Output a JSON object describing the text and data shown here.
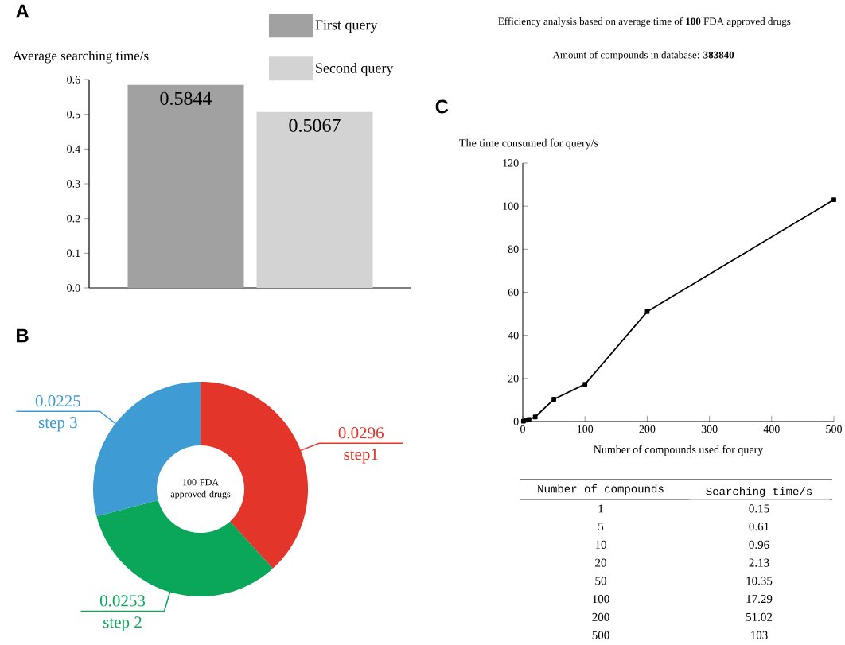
{
  "chart_data": [
    {
      "type": "bar",
      "title": "A",
      "ylabel": "Average searching time/s",
      "categories": [
        null
      ],
      "series": [
        {
          "name": "First query",
          "color": "#a0a1a0",
          "values": [
            0.5844
          ]
        },
        {
          "name": "Second query",
          "color": "#d3d3d3",
          "values": [
            0.5067
          ]
        }
      ],
      "ylim": [
        0,
        0.6
      ],
      "yticks": [
        {
          "value": 0,
          "label": "0.0"
        },
        0.1,
        0.2,
        0.3,
        0.4,
        0.5,
        0.6
      ],
      "data_labels": true,
      "legend": "top",
      "annotations": [
        "Efficiency analysis based on average time of **100** FDA approved drugs",
        "Amount of compounds in database: **383840**"
      ]
    },
    {
      "type": "donut",
      "title": "B",
      "categories": [
        "step1",
        "step 2",
        "step 3"
      ],
      "values": [
        0.0296,
        0.0253,
        0.0225
      ],
      "colors": [
        "#e3352a",
        "#0aa65a",
        "#3f9bd3"
      ],
      "data_labels": true,
      "annotations": [
        "100 FDA approved drugs"
      ]
    },
    {
      "type": "line",
      "title": "C",
      "xlabel": "Number of  compounds used for query",
      "ylabel": "The time consumed for query/s",
      "x": [
        1,
        5,
        10,
        20,
        50,
        100,
        200,
        500
      ],
      "values": [
        0.15,
        0.61,
        0.96,
        2.13,
        10.35,
        17.29,
        51.02,
        103
      ],
      "color": "#000000",
      "marker": "square",
      "xlim": [
        0,
        500
      ],
      "ylim": [
        0,
        120
      ],
      "xticks": [
        0,
        100,
        200,
        300,
        400,
        500
      ],
      "yticks": [
        0,
        20,
        40,
        60,
        80,
        100,
        120
      ]
    },
    {
      "type": "heatmap",
      "ylabel": "Number of compounds",
      "categories": [
        "Searching time/s"
      ],
      "y_categories": [
        "1",
        "5",
        "10",
        "20",
        "50",
        "100",
        "200",
        "500"
      ],
      "cells": [
        [
          0.15
        ],
        [
          0.61
        ],
        [
          0.96
        ],
        [
          2.13
        ],
        [
          10.35
        ],
        [
          17.29
        ],
        [
          51.02
        ],
        [
          103
        ]
      ],
      "data_labels": true
    }
  ]
}
